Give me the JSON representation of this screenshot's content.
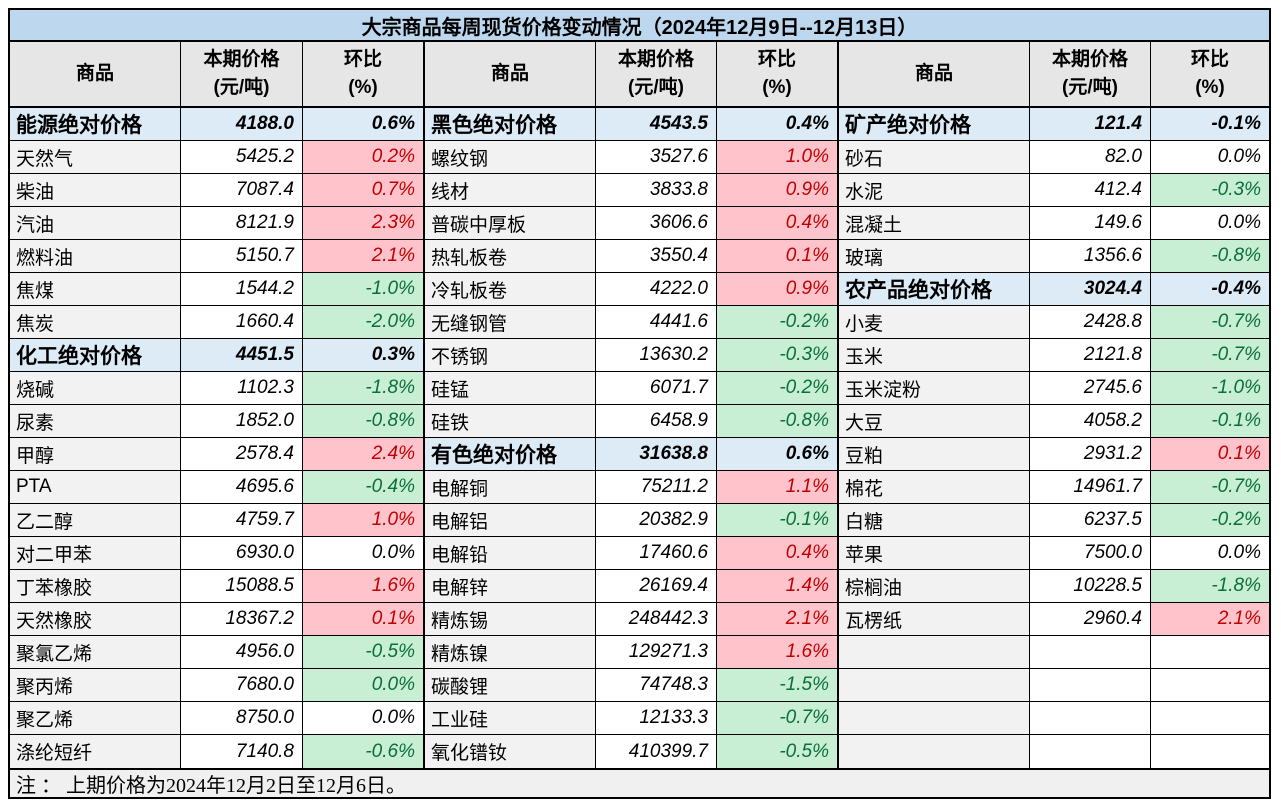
{
  "title": "大宗商品每周现货价格变动情况（2024年12月9日--12月13日）",
  "headers": {
    "commodity": "商品",
    "price": "本期价格\n(元/吨)",
    "change": "环比\n(%)"
  },
  "note": "注 ： 上期价格为2024年12月2日至12月6日。",
  "colors": {
    "title_bg": "#BDD7EE",
    "section_bg": "#DDEBF7",
    "header_bg": "#E7E6E6",
    "name_bg": "#F2F2F2",
    "up_bg": "#FFC3CC",
    "up_text": "#C00000",
    "down_bg": "#C8EFD3",
    "down_text": "#0A6E37",
    "border": "#000000"
  },
  "groups": [
    {
      "rows": [
        {
          "type": "section",
          "name": "能源绝对价格",
          "price": "4188.0",
          "change": "0.6%"
        },
        {
          "type": "item",
          "name": "天然气",
          "price": "5425.2",
          "change": "0.2%",
          "dir": "up"
        },
        {
          "type": "item",
          "name": "柴油",
          "price": "7087.4",
          "change": "0.7%",
          "dir": "up"
        },
        {
          "type": "item",
          "name": "汽油",
          "price": "8121.9",
          "change": "2.3%",
          "dir": "up"
        },
        {
          "type": "item",
          "name": "燃料油",
          "price": "5150.7",
          "change": "2.1%",
          "dir": "up"
        },
        {
          "type": "item",
          "name": "焦煤",
          "price": "1544.2",
          "change": "-1.0%",
          "dir": "down"
        },
        {
          "type": "item",
          "name": "焦炭",
          "price": "1660.4",
          "change": "-2.0%",
          "dir": "down"
        },
        {
          "type": "section",
          "name": "化工绝对价格",
          "price": "4451.5",
          "change": "0.3%"
        },
        {
          "type": "item",
          "name": "烧碱",
          "price": "1102.3",
          "change": "-1.8%",
          "dir": "down"
        },
        {
          "type": "item",
          "name": "尿素",
          "price": "1852.0",
          "change": "-0.8%",
          "dir": "down"
        },
        {
          "type": "item",
          "name": "甲醇",
          "price": "2578.4",
          "change": "2.4%",
          "dir": "up"
        },
        {
          "type": "item",
          "name": "PTA",
          "price": "4695.6",
          "change": "-0.4%",
          "dir": "down"
        },
        {
          "type": "item",
          "name": "乙二醇",
          "price": "4759.7",
          "change": "1.0%",
          "dir": "up"
        },
        {
          "type": "item",
          "name": "对二甲苯",
          "price": "6930.0",
          "change": "0.0%",
          "dir": "flat"
        },
        {
          "type": "item",
          "name": "丁苯橡胶",
          "price": "15088.5",
          "change": "1.6%",
          "dir": "up"
        },
        {
          "type": "item",
          "name": "天然橡胶",
          "price": "18367.2",
          "change": "0.1%",
          "dir": "up"
        },
        {
          "type": "item",
          "name": "聚氯乙烯",
          "price": "4956.0",
          "change": "-0.5%",
          "dir": "down"
        },
        {
          "type": "item",
          "name": "聚丙烯",
          "price": "7680.0",
          "change": "0.0%",
          "dir": "down"
        },
        {
          "type": "item",
          "name": "聚乙烯",
          "price": "8750.0",
          "change": "0.0%",
          "dir": "flat"
        },
        {
          "type": "item",
          "name": "涤纶短纤",
          "price": "7140.8",
          "change": "-0.6%",
          "dir": "down"
        }
      ]
    },
    {
      "rows": [
        {
          "type": "section",
          "name": "黑色绝对价格",
          "price": "4543.5",
          "change": "0.4%"
        },
        {
          "type": "item",
          "name": "螺纹钢",
          "price": "3527.6",
          "change": "1.0%",
          "dir": "up"
        },
        {
          "type": "item",
          "name": "线材",
          "price": "3833.8",
          "change": "0.9%",
          "dir": "up"
        },
        {
          "type": "item",
          "name": "普碳中厚板",
          "price": "3606.6",
          "change": "0.4%",
          "dir": "up"
        },
        {
          "type": "item",
          "name": "热轧板卷",
          "price": "3550.4",
          "change": "0.1%",
          "dir": "up"
        },
        {
          "type": "item",
          "name": "冷轧板卷",
          "price": "4222.0",
          "change": "0.9%",
          "dir": "up"
        },
        {
          "type": "item",
          "name": "无缝钢管",
          "price": "4441.6",
          "change": "-0.2%",
          "dir": "down"
        },
        {
          "type": "item",
          "name": "不锈钢",
          "price": "13630.2",
          "change": "-0.3%",
          "dir": "down"
        },
        {
          "type": "item",
          "name": "硅锰",
          "price": "6071.7",
          "change": "-0.2%",
          "dir": "down"
        },
        {
          "type": "item",
          "name": "硅铁",
          "price": "6458.9",
          "change": "-0.8%",
          "dir": "down"
        },
        {
          "type": "section",
          "name": "有色绝对价格",
          "price": "31638.8",
          "change": "0.6%"
        },
        {
          "type": "item",
          "name": "电解铜",
          "price": "75211.2",
          "change": "1.1%",
          "dir": "up"
        },
        {
          "type": "item",
          "name": "电解铝",
          "price": "20382.9",
          "change": "-0.1%",
          "dir": "down"
        },
        {
          "type": "item",
          "name": "电解铅",
          "price": "17460.6",
          "change": "0.4%",
          "dir": "up"
        },
        {
          "type": "item",
          "name": "电解锌",
          "price": "26169.4",
          "change": "1.4%",
          "dir": "up"
        },
        {
          "type": "item",
          "name": "精炼锡",
          "price": "248442.3",
          "change": "2.1%",
          "dir": "up"
        },
        {
          "type": "item",
          "name": "精炼镍",
          "price": "129271.3",
          "change": "1.6%",
          "dir": "up"
        },
        {
          "type": "item",
          "name": "碳酸锂",
          "price": "74748.3",
          "change": "-1.5%",
          "dir": "down"
        },
        {
          "type": "item",
          "name": "工业硅",
          "price": "12133.3",
          "change": "-0.7%",
          "dir": "down"
        },
        {
          "type": "item",
          "name": "氧化镨钕",
          "price": "410399.7",
          "change": "-0.5%",
          "dir": "down"
        }
      ]
    },
    {
      "rows": [
        {
          "type": "section",
          "name": "矿产绝对价格",
          "price": "121.4",
          "change": "-0.1%"
        },
        {
          "type": "item",
          "name": "砂石",
          "price": "82.0",
          "change": "0.0%",
          "dir": "flat"
        },
        {
          "type": "item",
          "name": "水泥",
          "price": "412.4",
          "change": "-0.3%",
          "dir": "down"
        },
        {
          "type": "item",
          "name": "混凝土",
          "price": "149.6",
          "change": "0.0%",
          "dir": "flat"
        },
        {
          "type": "item",
          "name": "玻璃",
          "price": "1356.6",
          "change": "-0.8%",
          "dir": "down"
        },
        {
          "type": "section",
          "name": "农产品绝对价格",
          "price": "3024.4",
          "change": "-0.4%"
        },
        {
          "type": "item",
          "name": "小麦",
          "price": "2428.8",
          "change": "-0.7%",
          "dir": "down"
        },
        {
          "type": "item",
          "name": "玉米",
          "price": "2121.8",
          "change": "-0.7%",
          "dir": "down"
        },
        {
          "type": "item",
          "name": "玉米淀粉",
          "price": "2745.6",
          "change": "-1.0%",
          "dir": "down"
        },
        {
          "type": "item",
          "name": "大豆",
          "price": "4058.2",
          "change": "-0.1%",
          "dir": "down"
        },
        {
          "type": "item",
          "name": "豆粕",
          "price": "2931.2",
          "change": "0.1%",
          "dir": "up"
        },
        {
          "type": "item",
          "name": "棉花",
          "price": "14961.7",
          "change": "-0.7%",
          "dir": "down"
        },
        {
          "type": "item",
          "name": "白糖",
          "price": "6237.5",
          "change": "-0.2%",
          "dir": "down"
        },
        {
          "type": "item",
          "name": "苹果",
          "price": "7500.0",
          "change": "0.0%",
          "dir": "flat"
        },
        {
          "type": "item",
          "name": "棕榈油",
          "price": "10228.5",
          "change": "-1.8%",
          "dir": "down"
        },
        {
          "type": "item",
          "name": "瓦楞纸",
          "price": "2960.4",
          "change": "2.1%",
          "dir": "up"
        },
        {
          "type": "empty",
          "name": "",
          "price": "",
          "change": ""
        },
        {
          "type": "empty",
          "name": "",
          "price": "",
          "change": ""
        },
        {
          "type": "empty",
          "name": "",
          "price": "",
          "change": ""
        },
        {
          "type": "empty",
          "name": "",
          "price": "",
          "change": ""
        }
      ]
    }
  ]
}
